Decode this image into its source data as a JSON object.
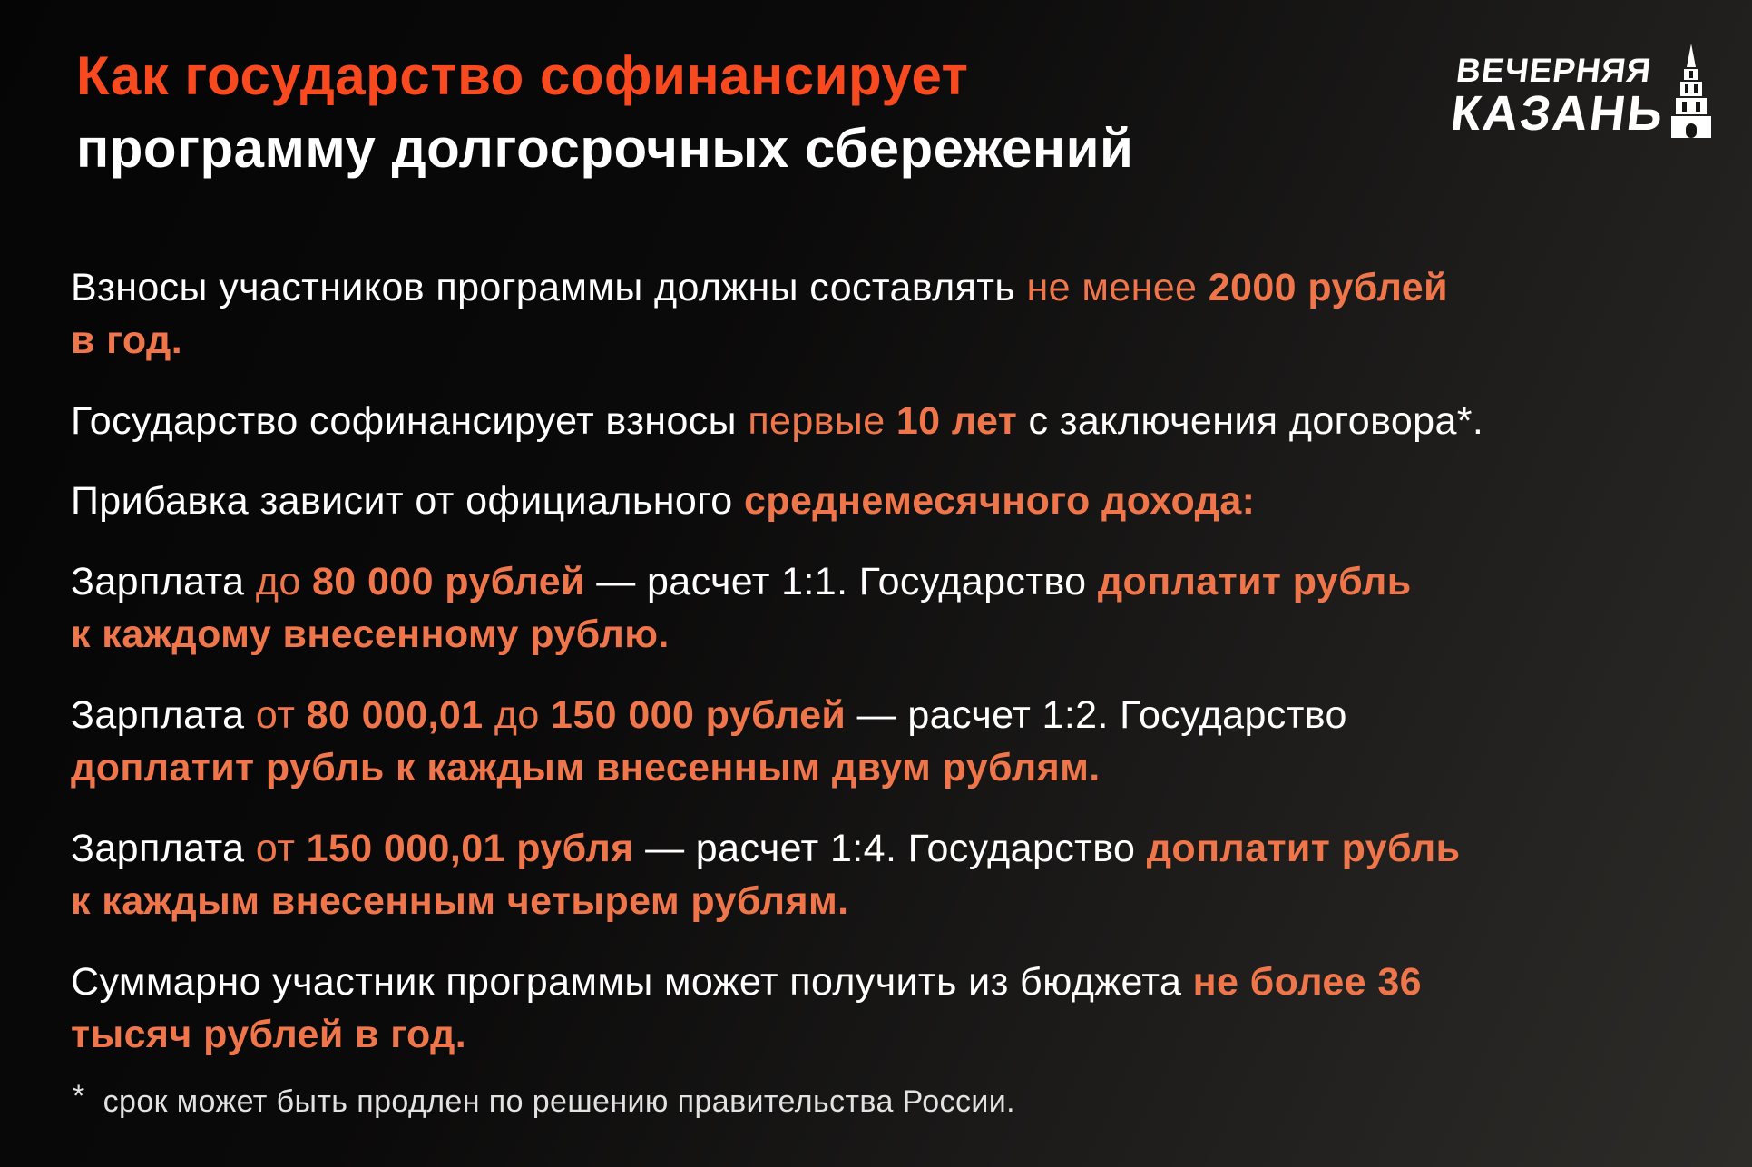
{
  "header": {
    "title_line1": "Как государство софинансирует",
    "title_line2": "программу долгосрочных сбережений",
    "logo": {
      "line1": "ВЕЧЕРНЯЯ",
      "line2": "КАЗАНЬ",
      "tower_icon": "kazan-tower-icon"
    }
  },
  "colors": {
    "title_accent": "#f8491f",
    "body_accent": "#ef764a",
    "text": "#ffffff",
    "footnote_text": "#e2e2e2",
    "bg_dark": "#050505",
    "bg_light": "#2e2c29"
  },
  "paragraphs": [
    {
      "segments": [
        {
          "text": "Взносы участников программы должны составлять ",
          "style": "white"
        },
        {
          "text": "не менее ",
          "style": "orange"
        },
        {
          "text": "2000 рублей",
          "style": "orange-bold"
        },
        {
          "br": true
        },
        {
          "text": "в год.",
          "style": "orange-bold"
        }
      ]
    },
    {
      "segments": [
        {
          "text": "Государство софинансирует взносы ",
          "style": "white"
        },
        {
          "text": "первые ",
          "style": "orange"
        },
        {
          "text": "10 лет",
          "style": "orange-bold"
        },
        {
          "text": " с заключения договора*.",
          "style": "white"
        }
      ]
    },
    {
      "segments": [
        {
          "text": "Прибавка зависит от официального ",
          "style": "white"
        },
        {
          "text": "среднемесячного дохода:",
          "style": "orange-bold"
        }
      ]
    },
    {
      "segments": [
        {
          "text": "Зарплата ",
          "style": "white"
        },
        {
          "text": "до ",
          "style": "orange"
        },
        {
          "text": "80 000 рублей",
          "style": "orange-bold"
        },
        {
          "text": " — расчет 1:1. Государство ",
          "style": "white"
        },
        {
          "text": "доплатит рубль",
          "style": "orange-bold"
        },
        {
          "br": true
        },
        {
          "text": "к каждому внесенному рублю.",
          "style": "orange-bold"
        }
      ]
    },
    {
      "segments": [
        {
          "text": "Зарплата ",
          "style": "white"
        },
        {
          "text": "от ",
          "style": "orange"
        },
        {
          "text": "80 000,01 ",
          "style": "orange-bold"
        },
        {
          "text": "до ",
          "style": "orange"
        },
        {
          "text": "150 000 рублей",
          "style": "orange-bold"
        },
        {
          "text": " — расчет 1:2. Государство",
          "style": "white"
        },
        {
          "br": true
        },
        {
          "text": "доплатит рубль к каждым внесенным двум рублям.",
          "style": "orange-bold"
        }
      ]
    },
    {
      "segments": [
        {
          "text": "Зарплата ",
          "style": "white"
        },
        {
          "text": "от ",
          "style": "orange"
        },
        {
          "text": "150 000,01 рубля",
          "style": "orange-bold"
        },
        {
          "text": " — расчет 1:4. Государство ",
          "style": "white"
        },
        {
          "text": "доплатит рубль",
          "style": "orange-bold"
        },
        {
          "br": true
        },
        {
          "text": "к каждым внесенным четырем рублям.",
          "style": "orange-bold"
        }
      ]
    },
    {
      "segments": [
        {
          "text": "Суммарно участник программы может получить из бюджета ",
          "style": "white"
        },
        {
          "text": "не более 36",
          "style": "orange-bold"
        },
        {
          "br": true
        },
        {
          "text": "тысяч рублей в год.",
          "style": "orange-bold"
        }
      ]
    }
  ],
  "footnote": {
    "marker": "*",
    "text": "срок может быть продлен по решению правительства России."
  }
}
